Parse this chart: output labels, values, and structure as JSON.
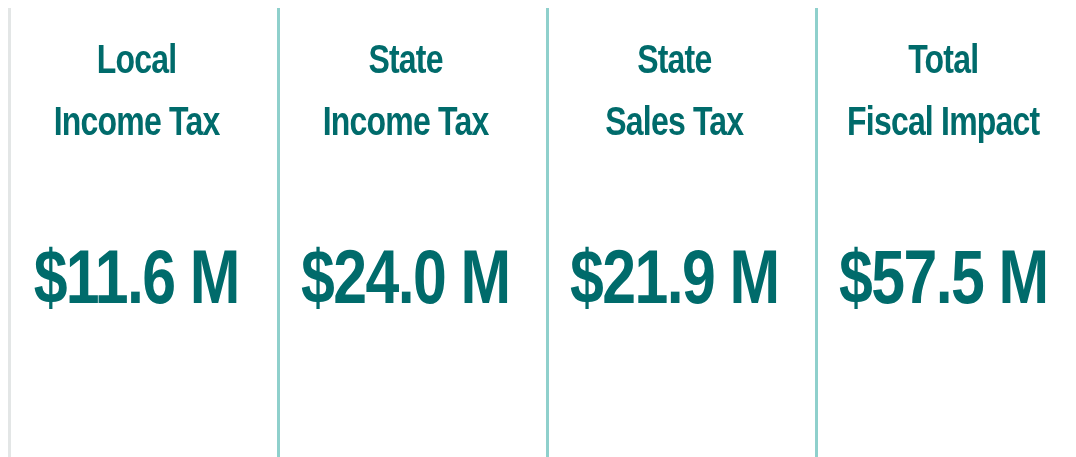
{
  "chart_data": {
    "type": "other",
    "categories": [
      "Local\nIncome Tax",
      "State\nIncome Tax",
      "State\nSales Tax",
      "Total\nFiscal Impact"
    ],
    "values": [
      11.6,
      24.0,
      21.9,
      57.5
    ],
    "value_labels": [
      "$11.6 M",
      "$24.0 M",
      "$21.9 M",
      "$57.5 M"
    ],
    "color": "#006b6b"
  }
}
